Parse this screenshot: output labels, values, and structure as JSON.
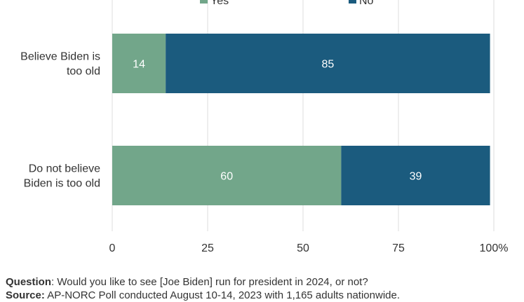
{
  "chart_data": {
    "type": "bar",
    "orientation": "horizontal",
    "stacked": true,
    "categories": [
      "Believe Biden is too old",
      "Do not believe Biden is too old"
    ],
    "category_lines": [
      [
        "Believe Biden is",
        "too old"
      ],
      [
        "Do not believe",
        "Biden is too old"
      ]
    ],
    "series": [
      {
        "name": "Yes",
        "values": [
          14,
          60
        ],
        "color": "#72a68a"
      },
      {
        "name": "No",
        "values": [
          85,
          39
        ],
        "color": "#1b5b7e"
      }
    ],
    "xlim": [
      0,
      100
    ],
    "xticks": [
      0,
      25,
      50,
      75,
      100
    ],
    "x_unit": "%",
    "grid": "vertical",
    "legend": "top-center",
    "value_label_color": "#ffffff"
  },
  "footer": {
    "question_label": "Question",
    "question_text": ": Would you like to see [Joe Biden] run for president in 2024, or not?",
    "source_label": "Source:",
    "source_text": " AP-NORC Poll conducted August 10-14, 2023 with 1,165 adults nationwide."
  }
}
